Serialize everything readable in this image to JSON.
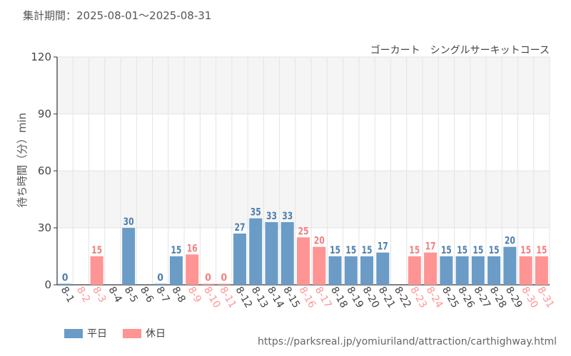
{
  "header": {
    "period": "集計期間：2025-08-01～2025-08-31"
  },
  "source_url": "https://parksreal.jp/yomiuriland/attraction/carthighway.html",
  "colors": {
    "weekday": "#6a9cc7",
    "holiday": "#ff9494",
    "weekday_text": "#4f7fae",
    "holiday_text": "#f08080",
    "band": "#f5f5f5",
    "grid": "#e4e4e4"
  },
  "chart_data": {
    "type": "bar",
    "title": "ゴーカート　シングルサーキットコース",
    "ylabel": "待ち時間（分）min",
    "xlabel": "",
    "ylim": [
      0,
      120
    ],
    "yticks": [
      0,
      30,
      60,
      90,
      120
    ],
    "grid": true,
    "legend_position": "bottom-left",
    "categories": [
      "8-1",
      "8-2",
      "8-3",
      "8-4",
      "8-5",
      "8-6",
      "8-7",
      "8-8",
      "8-9",
      "8-10",
      "8-11",
      "8-12",
      "8-13",
      "8-14",
      "8-15",
      "8-16",
      "8-17",
      "8-18",
      "8-19",
      "8-20",
      "8-21",
      "8-22",
      "8-23",
      "8-24",
      "8-25",
      "8-26",
      "8-27",
      "8-28",
      "8-29",
      "8-30",
      "8-31"
    ],
    "holiday": [
      false,
      true,
      true,
      false,
      false,
      false,
      false,
      false,
      true,
      true,
      true,
      false,
      false,
      false,
      false,
      true,
      true,
      false,
      false,
      false,
      false,
      false,
      true,
      true,
      false,
      false,
      false,
      false,
      false,
      true,
      true
    ],
    "values": [
      0,
      null,
      15,
      null,
      30,
      null,
      0,
      15,
      16,
      0,
      0,
      27,
      35,
      33,
      33,
      25,
      20,
      15,
      15,
      15,
      17,
      null,
      15,
      17,
      15,
      15,
      15,
      15,
      20,
      15,
      15
    ],
    "series": [
      {
        "name": "平日"
      },
      {
        "name": "休日"
      }
    ]
  }
}
